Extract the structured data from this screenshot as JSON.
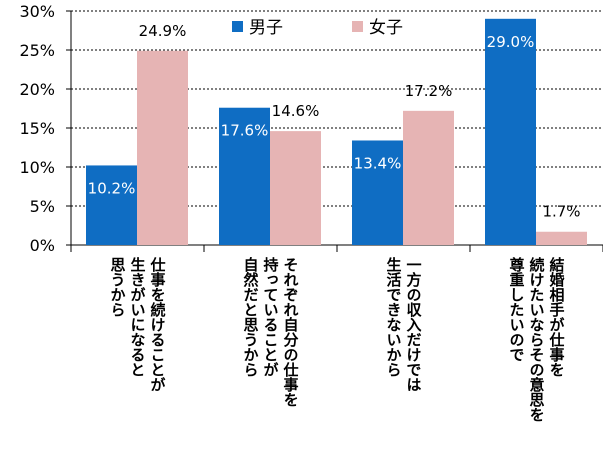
{
  "chart_data": {
    "type": "bar",
    "categories": [
      "仕事を続けることが\n生きがいになると\n思うから",
      "それぞれ自分の仕事を\n持っていることが\n自然だと思うから",
      "一方の収入だけでは\n生活できないから",
      "結婚相手が仕事を\n続けたいならその意思を\n尊重したいので"
    ],
    "series": [
      {
        "name": "男子",
        "values": [
          10.2,
          17.6,
          13.4,
          29.0
        ],
        "labels": [
          "10.2%",
          "17.6%",
          "13.4%",
          "29.0%"
        ],
        "color": "#0f6dc3"
      },
      {
        "name": "女子",
        "values": [
          24.9,
          14.6,
          17.2,
          1.7
        ],
        "labels": [
          "24.9%",
          "14.6%",
          "17.2%",
          "1.7%"
        ],
        "color": "#e6b4b4"
      }
    ],
    "ylim": [
      0,
      30
    ],
    "yticks": [
      0,
      5,
      10,
      15,
      20,
      25,
      30
    ],
    "ytick_labels": [
      "0%",
      "5%",
      "10%",
      "15%",
      "20%",
      "25%",
      "30%"
    ],
    "grid": true,
    "legend_position": "top-center"
  }
}
